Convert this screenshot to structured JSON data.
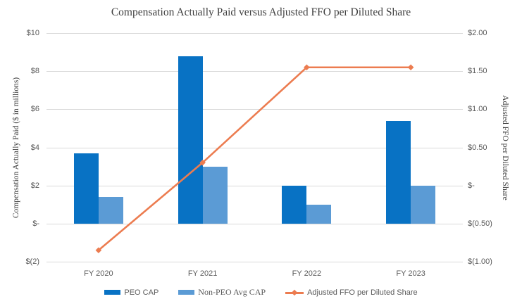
{
  "title": "Compensation Actually Paid versus Adjusted FFO per Diluted Share",
  "colors": {
    "peo_cap_bar": "#0872C4",
    "non_peo_cap_bar": "#5B9BD5",
    "ffo_line": "#EC7C50",
    "gridline": "#D9D9D9",
    "tick_text": "#595959",
    "title_text": "#3F3F3F",
    "background": "#FFFFFF"
  },
  "chart_data": {
    "type": "combo",
    "title": "Compensation Actually Paid versus Adjusted FFO per Diluted Share",
    "categories": [
      "FY 2020",
      "FY 2021",
      "FY 2022",
      "FY 2023"
    ],
    "series": [
      {
        "name": "PEO CAP",
        "type": "bar",
        "axis": "left",
        "color": "#0872C4",
        "values": [
          3.7,
          8.8,
          2.0,
          5.4
        ]
      },
      {
        "name": "Non-PEO Avg CAP",
        "type": "bar",
        "axis": "left",
        "color": "#5B9BD5",
        "values": [
          1.4,
          3.0,
          1.0,
          2.0
        ]
      },
      {
        "name": "Adjusted FFO per Diluted Share",
        "type": "line",
        "axis": "right",
        "color": "#EC7C50",
        "values": [
          -0.85,
          0.3,
          1.55,
          1.55
        ]
      }
    ],
    "left_axis": {
      "label": "Compensation Actually Paid ($ in millions)",
      "ticks": [
        "$10",
        "$8",
        "$6",
        "$4",
        "$2",
        "$-",
        "$(2)"
      ],
      "tick_values": [
        10,
        8,
        6,
        4,
        2,
        0,
        -2
      ],
      "range": [
        -2,
        10
      ]
    },
    "right_axis": {
      "label": "Adjusted FFO per Diluted Share",
      "ticks": [
        "$2.00",
        "$1.50",
        "$1.00",
        "$0.50",
        "$-",
        "$(0.50)",
        "$(1.00)"
      ],
      "tick_values": [
        2,
        1.5,
        1,
        0.5,
        0,
        -0.5,
        -1
      ],
      "range": [
        -1,
        2
      ]
    },
    "grid": true,
    "legend_position": "bottom"
  }
}
